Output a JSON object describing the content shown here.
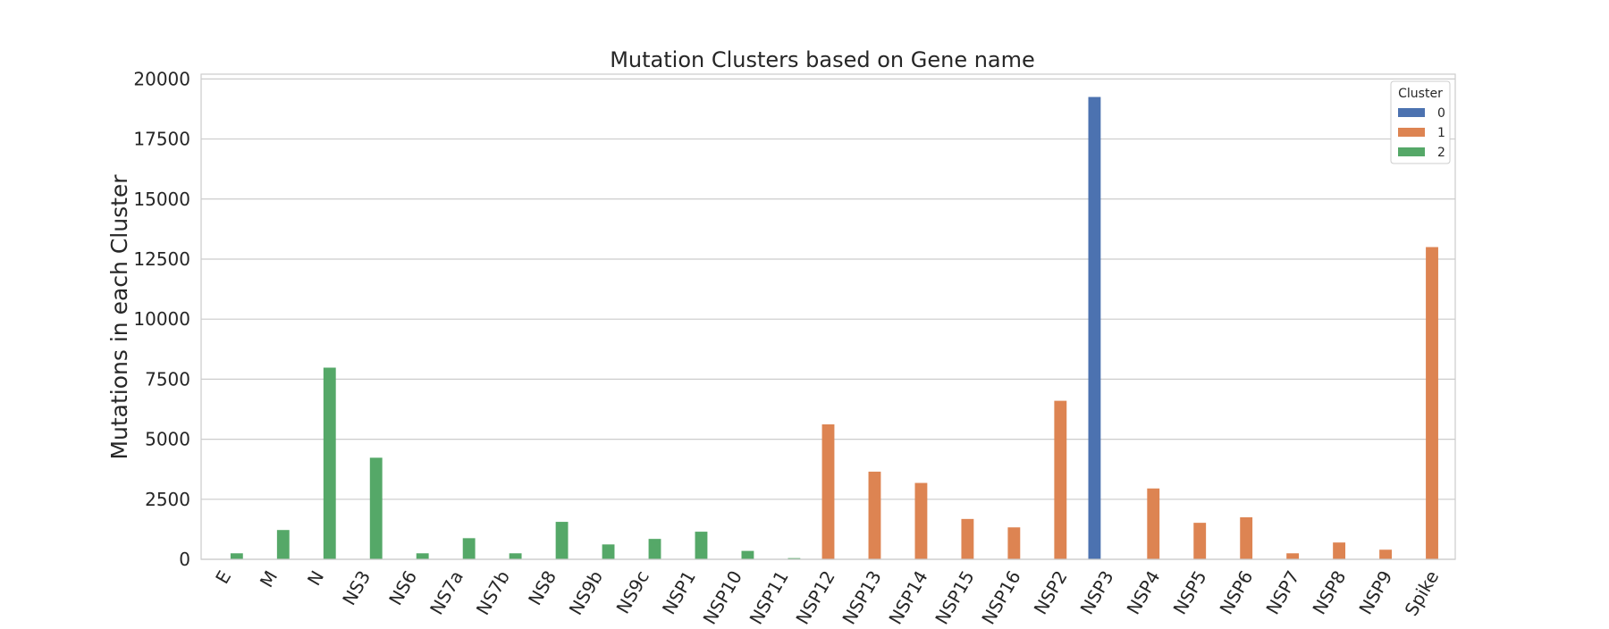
{
  "chart_data": {
    "type": "bar",
    "title": "Mutation Clusters based on Gene name",
    "xlabel": "",
    "ylabel": "Mutations in each Cluster",
    "ylim": [
      0,
      20200
    ],
    "yticks": [
      0,
      2500,
      5000,
      7500,
      10000,
      12500,
      15000,
      17500,
      20000
    ],
    "grid": true,
    "legend": {
      "title": "Cluster",
      "placement": "top-right"
    },
    "categories": [
      "E",
      "M",
      "N",
      "NS3",
      "NS6",
      "NS7a",
      "NS7b",
      "NS8",
      "NS9b",
      "NS9c",
      "NSP1",
      "NSP10",
      "NSP11",
      "NSP12",
      "NSP13",
      "NSP14",
      "NSP15",
      "NSP16",
      "NSP2",
      "NSP3",
      "NSP4",
      "NSP5",
      "NSP6",
      "NSP7",
      "NSP8",
      "NSP9",
      "Spike"
    ],
    "series": [
      {
        "name": "0",
        "color": "#4c72b0",
        "values": [
          null,
          null,
          null,
          null,
          null,
          null,
          null,
          null,
          null,
          null,
          null,
          null,
          null,
          null,
          null,
          null,
          null,
          null,
          null,
          19250,
          null,
          null,
          null,
          null,
          null,
          null,
          null
        ]
      },
      {
        "name": "1",
        "color": "#dd8452",
        "values": [
          null,
          null,
          null,
          null,
          null,
          null,
          null,
          null,
          null,
          null,
          null,
          null,
          null,
          5620,
          3650,
          3180,
          1680,
          1330,
          6600,
          null,
          2950,
          1520,
          1750,
          250,
          700,
          400,
          13000
        ]
      },
      {
        "name": "2",
        "color": "#55a868",
        "values": [
          250,
          1220,
          7980,
          4230,
          250,
          880,
          250,
          1560,
          620,
          850,
          1150,
          350,
          50,
          null,
          null,
          null,
          null,
          null,
          null,
          null,
          null,
          null,
          null,
          null,
          null,
          null,
          null
        ]
      }
    ]
  }
}
